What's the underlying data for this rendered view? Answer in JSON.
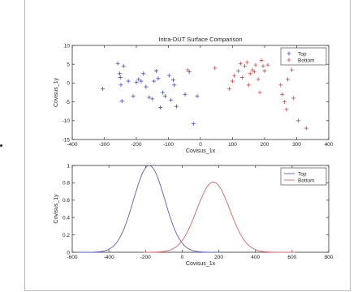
{
  "chart_data": [
    {
      "type": "scatter",
      "title": "Intra-DUT Surface Comparison",
      "xlabel": "Covisus_1x",
      "ylabel": "Covisus_1y",
      "xlim": [
        -400,
        400
      ],
      "ylim": [
        -15,
        10
      ],
      "xticks": [
        -400,
        -300,
        -200,
        -100,
        0,
        100,
        200,
        300,
        400
      ],
      "yticks": [
        -15,
        -10,
        -5,
        0,
        5,
        10
      ],
      "grid": false,
      "legend_position": "top-right",
      "series": [
        {
          "name": "Top",
          "color": "#4a4ad8",
          "marker": "+",
          "points": [
            [
              -305,
              -1.5
            ],
            [
              -258,
              5.2
            ],
            [
              -252,
              2.5
            ],
            [
              -250,
              1.5
            ],
            [
              -248,
              -0.5
            ],
            [
              -245,
              -4.8
            ],
            [
              -240,
              4.5
            ],
            [
              -225,
              0.5
            ],
            [
              -210,
              -3.5
            ],
            [
              -200,
              0.2
            ],
            [
              -193,
              1.0
            ],
            [
              -185,
              0.5
            ],
            [
              -178,
              2.5
            ],
            [
              -170,
              -1.0
            ],
            [
              -160,
              -3.8
            ],
            [
              -150,
              -4.2
            ],
            [
              -145,
              0.5
            ],
            [
              -138,
              3.2
            ],
            [
              -132,
              1.2
            ],
            [
              -125,
              -6.5
            ],
            [
              -118,
              -2.5
            ],
            [
              -110,
              -3.5
            ],
            [
              -98,
              2.0
            ],
            [
              -92,
              -4.5
            ],
            [
              -85,
              0.8
            ],
            [
              -82,
              -0.5
            ],
            [
              -75,
              -6.2
            ],
            [
              -48,
              -3.0
            ],
            [
              -35,
              3.0
            ],
            [
              -22,
              -10.8
            ],
            [
              -10,
              -3.5
            ]
          ]
        },
        {
          "name": "Bottom",
          "color": "#d84a4a",
          "marker": "+",
          "points": [
            [
              -40,
              3.5
            ],
            [
              45,
              4.0
            ],
            [
              90,
              -1.5
            ],
            [
              100,
              0.5
            ],
            [
              105,
              2.0
            ],
            [
              118,
              3.2
            ],
            [
              125,
              5.2
            ],
            [
              130,
              1.5
            ],
            [
              138,
              4.5
            ],
            [
              145,
              5.5
            ],
            [
              150,
              -0.5
            ],
            [
              155,
              2.5
            ],
            [
              162,
              3.5
            ],
            [
              168,
              3.0
            ],
            [
              172,
              4.8
            ],
            [
              180,
              1.0
            ],
            [
              185,
              -2.5
            ],
            [
              190,
              6.0
            ],
            [
              195,
              4.5
            ],
            [
              200,
              3.2
            ],
            [
              210,
              4.8
            ],
            [
              250,
              -0.5
            ],
            [
              255,
              -3.0
            ],
            [
              262,
              -5.0
            ],
            [
              268,
              -7.0
            ],
            [
              272,
              1.0
            ],
            [
              278,
              5.5
            ],
            [
              285,
              3.5
            ],
            [
              290,
              -4.0
            ],
            [
              305,
              -10.0
            ],
            [
              330,
              -12.0
            ]
          ]
        }
      ]
    },
    {
      "type": "line",
      "xlabel": "Covisus_1x",
      "ylabel": "Covisus_1y",
      "xlim": [
        -600,
        800
      ],
      "ylim": [
        0,
        1
      ],
      "xticks": [
        -600,
        -400,
        -200,
        0,
        200,
        400,
        600,
        800
      ],
      "yticks": [
        0,
        0.2,
        0.4,
        0.6,
        0.8,
        1
      ],
      "grid": false,
      "legend_position": "top-right",
      "series": [
        {
          "name": "Top",
          "color": "#5a5ad0",
          "distribution": "normal",
          "mean": -180,
          "sd": 85,
          "peak": 1.0,
          "x_range": [
            -560,
            200
          ]
        },
        {
          "name": "Bottom",
          "color": "#e06060",
          "distribution": "normal",
          "mean": 170,
          "sd": 90,
          "peak": 0.81,
          "x_range": [
            -210,
            620
          ]
        }
      ]
    }
  ]
}
